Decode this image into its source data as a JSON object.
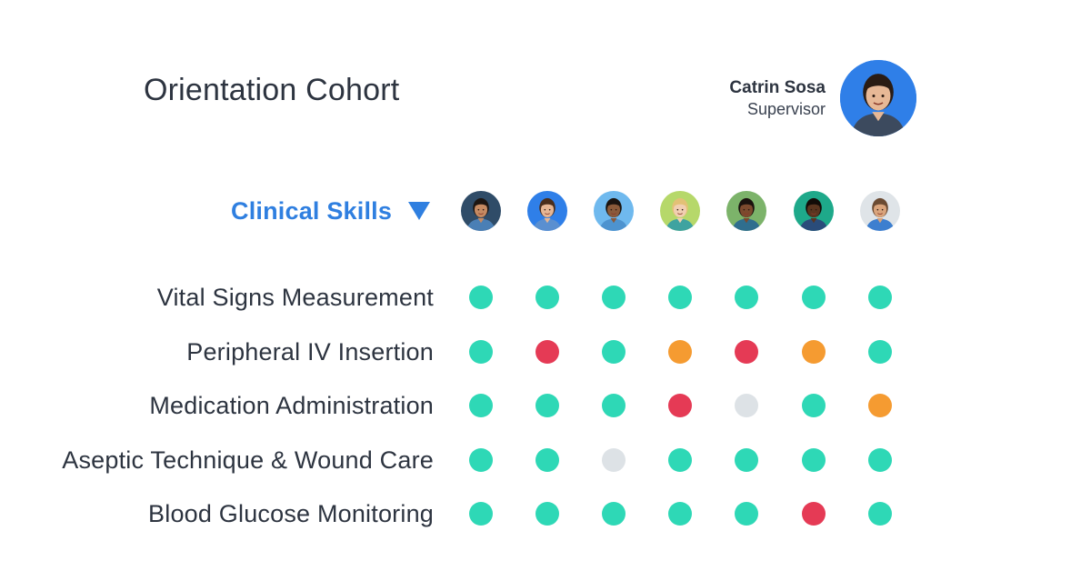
{
  "header": {
    "title": "Orientation Cohort"
  },
  "supervisor": {
    "name": "Catrin Sosa",
    "role": "Supervisor",
    "avatar_bg": "#2f7fe8",
    "skin": "#e7b896",
    "hair": "#2a1c14",
    "scrubs": "#3c4a5e"
  },
  "category": {
    "label": "Clinical Skills",
    "icon": "caret-down-icon"
  },
  "status_colors": {
    "proficient": "#2ed8b6",
    "needs_practice": "#f59b31",
    "not_competent": "#e53a55",
    "not_assessed": "#dde2e6"
  },
  "members": [
    {
      "bg": "#2f4c68",
      "skin": "#c58a62",
      "hair": "#1d1612",
      "scrubs": "#4a7fb5"
    },
    {
      "bg": "#2f7fe8",
      "skin": "#e6b694",
      "hair": "#4a2e1c",
      "scrubs": "#5a8fd0"
    },
    {
      "bg": "#6fb9ee",
      "skin": "#8a5a3a",
      "hair": "#1a1410",
      "scrubs": "#4d93cf"
    },
    {
      "bg": "#b6d86a",
      "skin": "#f1cfb1",
      "hair": "#e3c176",
      "scrubs": "#3fa3a0"
    },
    {
      "bg": "#7cb36a",
      "skin": "#7c4a2e",
      "hair": "#1a120e",
      "scrubs": "#2f6e8e"
    },
    {
      "bg": "#1ea98a",
      "skin": "#5a351f",
      "hair": "#120c08",
      "scrubs": "#2a4c7a"
    },
    {
      "bg": "#dfe4e8",
      "skin": "#d9a47c",
      "hair": "#6b4b33",
      "scrubs": "#3d7fcf"
    }
  ],
  "skills": [
    {
      "label": "Vital Signs Measurement",
      "statuses": [
        "proficient",
        "proficient",
        "proficient",
        "proficient",
        "proficient",
        "proficient",
        "proficient"
      ]
    },
    {
      "label": "Peripheral IV Insertion",
      "statuses": [
        "proficient",
        "not_competent",
        "proficient",
        "needs_practice",
        "not_competent",
        "needs_practice",
        "proficient"
      ]
    },
    {
      "label": "Medication Administration",
      "statuses": [
        "proficient",
        "proficient",
        "proficient",
        "not_competent",
        "not_assessed",
        "proficient",
        "needs_practice"
      ]
    },
    {
      "label": "Aseptic Technique & Wound Care",
      "statuses": [
        "proficient",
        "proficient",
        "not_assessed",
        "proficient",
        "proficient",
        "proficient",
        "proficient"
      ]
    },
    {
      "label": "Blood Glucose Monitoring",
      "statuses": [
        "proficient",
        "proficient",
        "proficient",
        "proficient",
        "proficient",
        "not_competent",
        "proficient"
      ]
    }
  ]
}
